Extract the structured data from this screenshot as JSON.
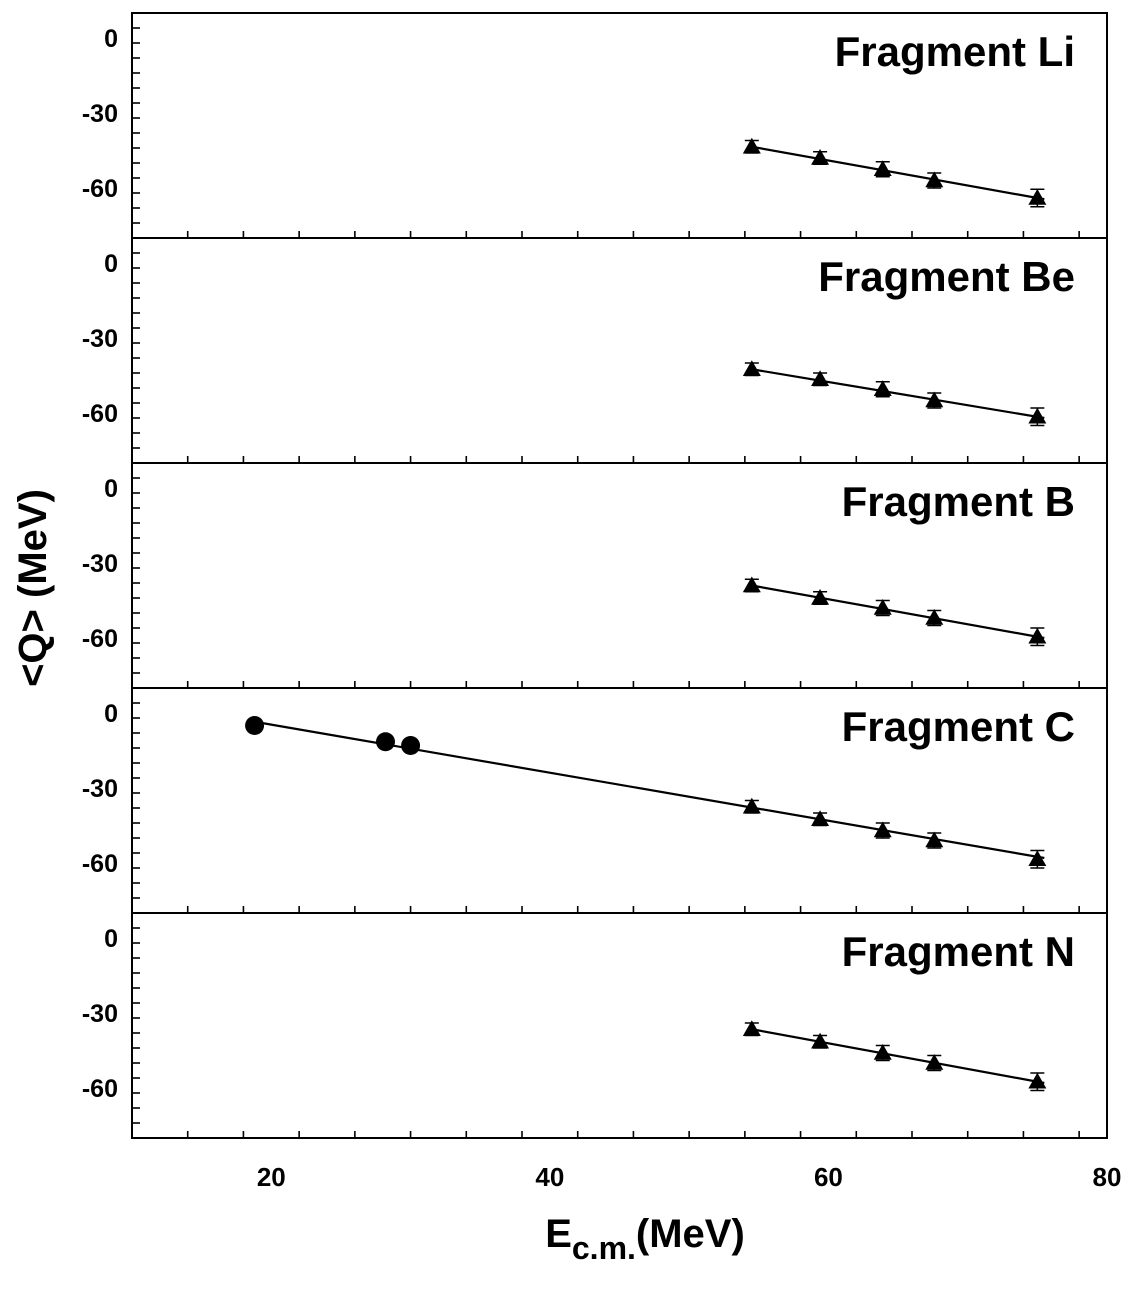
{
  "chart_data": {
    "type": "scatter",
    "xlabel": "E",
    "xlabel_sub": "c.m.",
    "xlabel_unit": "(MeV)",
    "ylabel": "<Q> (MeV)",
    "xlim": [
      10,
      80
    ],
    "ylim": [
      -80,
      10
    ],
    "x_ticks": [
      20,
      40,
      60,
      80
    ],
    "y_ticks": [
      0,
      -30,
      -60
    ],
    "marker_colors": {
      "triangle": "#000000",
      "circle": "#000000",
      "line": "#000000"
    },
    "panels": [
      {
        "label": "Fragment  Li",
        "triangles": {
          "x": [
            54.5,
            59.4,
            63.9,
            67.6,
            75.0
          ],
          "y": [
            -43.5,
            -48.0,
            -52.5,
            -57.0,
            -64.0
          ],
          "err": [
            2.5,
            2.5,
            3.0,
            3.0,
            3.5
          ]
        },
        "circles": {
          "x": [],
          "y": []
        },
        "fit": {
          "x": [
            54.5,
            75.5
          ],
          "y": [
            -43.5,
            -64.5
          ]
        }
      },
      {
        "label": "Fragment  Be",
        "triangles": {
          "x": [
            54.5,
            59.4,
            63.9,
            67.6,
            75.0
          ],
          "y": [
            -42.5,
            -46.5,
            -50.5,
            -55.0,
            -61.5
          ],
          "err": [
            2.5,
            2.5,
            3.0,
            3.0,
            3.5
          ]
        },
        "circles": {
          "x": [],
          "y": []
        },
        "fit": {
          "x": [
            54.5,
            75.5
          ],
          "y": [
            -42.5,
            -62.0
          ]
        }
      },
      {
        "label": "Fragment  B",
        "triangles": {
          "x": [
            54.5,
            59.4,
            63.9,
            67.6,
            75.0
          ],
          "y": [
            -39.0,
            -44.0,
            -48.0,
            -52.0,
            -59.5
          ],
          "err": [
            2.5,
            2.5,
            3.0,
            3.0,
            3.5
          ]
        },
        "circles": {
          "x": [],
          "y": []
        },
        "fit": {
          "x": [
            54.5,
            75.5
          ],
          "y": [
            -39.0,
            -60.0
          ]
        }
      },
      {
        "label": "Fragment  C",
        "triangles": {
          "x": [
            54.5,
            59.4,
            63.9,
            67.6,
            75.0
          ],
          "y": [
            -37.5,
            -42.5,
            -47.0,
            -51.0,
            -58.5
          ],
          "err": [
            2.5,
            2.5,
            3.0,
            3.0,
            3.5
          ]
        },
        "circles": {
          "x": [
            18.8,
            28.2,
            30.0
          ],
          "y": [
            -5.0,
            -11.5,
            -13.0
          ]
        },
        "fit": {
          "x": [
            18.8,
            75.5
          ],
          "y": [
            -3.5,
            -58.0
          ]
        }
      },
      {
        "label": "Fragment  N",
        "triangles": {
          "x": [
            54.5,
            59.4,
            63.9,
            67.6,
            75.0
          ],
          "y": [
            -36.5,
            -41.5,
            -46.0,
            -50.0,
            -57.5
          ],
          "err": [
            2.5,
            2.5,
            3.0,
            3.0,
            3.5
          ]
        },
        "circles": {
          "x": [],
          "y": []
        },
        "fit": {
          "x": [
            54.5,
            75.5
          ],
          "y": [
            -36.5,
            -58.0
          ]
        }
      }
    ]
  }
}
